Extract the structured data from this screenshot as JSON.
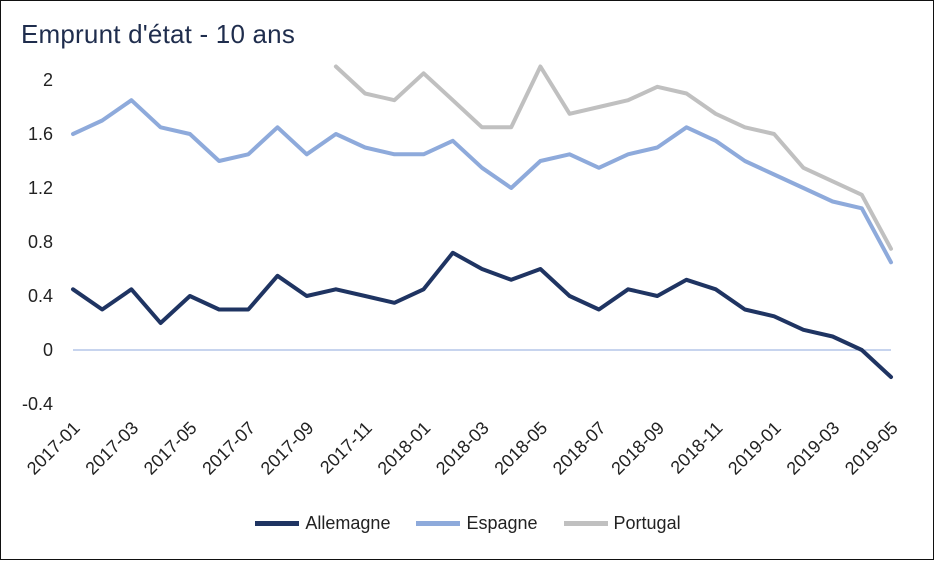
{
  "chart_data": {
    "type": "line",
    "title": "Emprunt d'état - 10 ans",
    "xlabel": "",
    "ylabel": "",
    "ylim": [
      -0.4,
      2.2
    ],
    "y_ticks": [
      "2",
      "1.6",
      "1.2",
      "0.8",
      "0.4",
      "0",
      "-0.4"
    ],
    "x_ticks": [
      "2017-01",
      "2017-03",
      "2017-05",
      "2017-07",
      "2017-09",
      "2017-11",
      "2018-01",
      "2018-03",
      "2018-05",
      "2018-07",
      "2018-09",
      "2018-11",
      "2019-01",
      "2019-03",
      "2019-05"
    ],
    "legend_position": "bottom",
    "grid": false,
    "x": [
      "2017-01",
      "2017-02",
      "2017-03",
      "2017-04",
      "2017-05",
      "2017-06",
      "2017-07",
      "2017-08",
      "2017-09",
      "2017-10",
      "2017-11",
      "2017-12",
      "2018-01",
      "2018-02",
      "2018-03",
      "2018-04",
      "2018-05",
      "2018-06",
      "2018-07",
      "2018-08",
      "2018-09",
      "2018-10",
      "2018-11",
      "2018-12",
      "2019-01",
      "2019-02",
      "2019-03",
      "2019-04",
      "2019-05"
    ],
    "series": [
      {
        "name": "Allemagne",
        "color": "#1f3462",
        "values": [
          0.45,
          0.3,
          0.45,
          0.2,
          0.4,
          0.3,
          0.3,
          0.55,
          0.4,
          0.45,
          0.4,
          0.35,
          0.45,
          0.72,
          0.6,
          0.52,
          0.6,
          0.4,
          0.3,
          0.45,
          0.4,
          0.52,
          0.45,
          0.3,
          0.25,
          0.15,
          0.1,
          0.0,
          -0.2
        ]
      },
      {
        "name": "Espagne",
        "color": "#8eaadb",
        "values": [
          1.6,
          1.7,
          1.85,
          1.65,
          1.6,
          1.4,
          1.45,
          1.65,
          1.45,
          1.6,
          1.5,
          1.45,
          1.45,
          1.55,
          1.35,
          1.2,
          1.4,
          1.45,
          1.35,
          1.45,
          1.5,
          1.65,
          1.55,
          1.4,
          1.3,
          1.2,
          1.1,
          1.05,
          0.65
        ]
      },
      {
        "name": "Portugal",
        "color": "#c0c0c0",
        "values": [
          null,
          null,
          null,
          null,
          null,
          null,
          null,
          null,
          null,
          2.1,
          1.9,
          1.85,
          2.05,
          1.85,
          1.65,
          1.65,
          2.1,
          1.75,
          1.8,
          1.85,
          1.95,
          1.9,
          1.75,
          1.65,
          1.6,
          1.35,
          1.25,
          1.15,
          0.75
        ]
      }
    ]
  }
}
